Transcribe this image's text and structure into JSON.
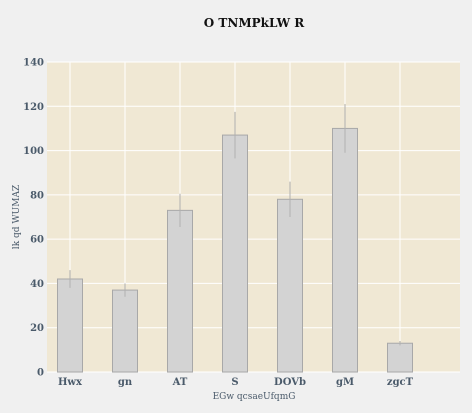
{
  "chart_data": {
    "type": "bar",
    "title": "O TNMPkLW R",
    "xlabel": "EGw qcsaeUfqmG",
    "ylabel": "lk qd WUMAZ",
    "categories": [
      "Hwx",
      "gn",
      "AT",
      "S",
      "DOVb",
      "gM",
      "zgcT"
    ],
    "values": [
      42,
      37,
      73,
      107,
      78,
      110,
      13
    ],
    "errors": [
      4,
      3,
      7.5,
      10.5,
      8,
      11,
      1
    ],
    "ylim": [
      0,
      140
    ],
    "yticks": [
      0,
      20,
      40,
      60,
      80,
      100,
      120,
      140
    ],
    "grid": true,
    "colors": {
      "page_background": "#f0f0f0",
      "plot_background": "#f0e8d4",
      "bar_fill": "#d3d3d3",
      "bar_stroke": "#a8a8a8",
      "error_bar": "#b0b0b0",
      "grid": "#ffffff",
      "text": "#4a5a6a"
    }
  }
}
